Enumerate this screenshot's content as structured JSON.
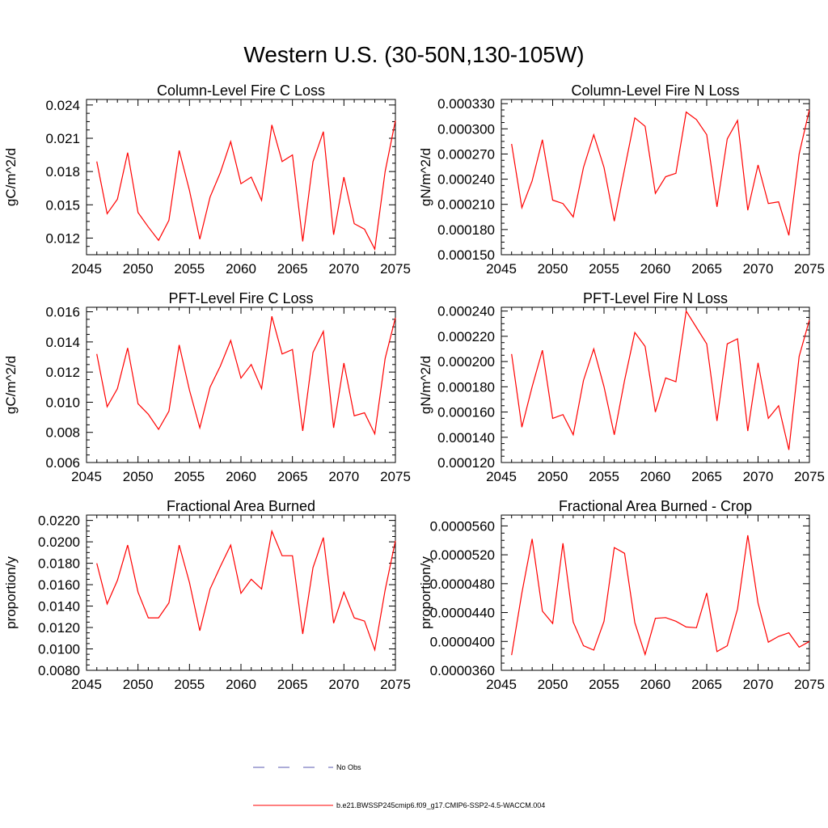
{
  "title": "Western U.S. (30-50N,130-105W)",
  "colors": {
    "series": "#ff0000",
    "obs": "#5a5ab0",
    "axis": "#000000"
  },
  "legend": [
    {
      "label": "No Obs",
      "style": "dashed",
      "color": "#5a5ab0"
    },
    {
      "label": "b.e21.BWSSP245cmip6.f09_g17.CMIP6-SSP2-4.5-WACCM.004",
      "style": "solid",
      "color": "#ff0000"
    }
  ],
  "chart_data": [
    {
      "type": "line",
      "title": "Column-Level Fire C Loss",
      "ylabel": "gC/m^2/d",
      "xlim": [
        2045,
        2075
      ],
      "ylim": [
        0.0105,
        0.0245
      ],
      "xticks": [
        2045,
        2050,
        2055,
        2060,
        2065,
        2070,
        2075
      ],
      "yticks": [
        0.012,
        0.015,
        0.018,
        0.021,
        0.024
      ],
      "ytick_labels": [
        "0.012",
        "0.015",
        "0.018",
        "0.021",
        "0.024"
      ],
      "x": [
        2046,
        2047,
        2048,
        2049,
        2050,
        2051,
        2052,
        2053,
        2054,
        2055,
        2056,
        2057,
        2058,
        2059,
        2060,
        2061,
        2062,
        2063,
        2064,
        2065,
        2066,
        2067,
        2068,
        2069,
        2070,
        2071,
        2072,
        2073,
        2074,
        2075
      ],
      "values": [
        0.0189,
        0.0142,
        0.0155,
        0.0197,
        0.0143,
        0.013,
        0.0118,
        0.0136,
        0.0199,
        0.0163,
        0.0119,
        0.0157,
        0.0179,
        0.0207,
        0.0169,
        0.0175,
        0.0154,
        0.0222,
        0.0189,
        0.0195,
        0.0117,
        0.0189,
        0.0216,
        0.0123,
        0.0175,
        0.0133,
        0.0128,
        0.011,
        0.018,
        0.0226
      ]
    },
    {
      "type": "line",
      "title": "Column-Level Fire N Loss",
      "ylabel": "gN/m^2/d",
      "xlim": [
        2045,
        2075
      ],
      "ylim": [
        0.00015,
        0.000335
      ],
      "xticks": [
        2045,
        2050,
        2055,
        2060,
        2065,
        2070,
        2075
      ],
      "yticks": [
        0.00015,
        0.00018,
        0.00021,
        0.00024,
        0.00027,
        0.0003,
        0.00033
      ],
      "ytick_labels": [
        "0.000150",
        "0.000180",
        "0.000210",
        "0.000240",
        "0.000270",
        "0.000300",
        "0.000330"
      ],
      "x": [
        2046,
        2047,
        2048,
        2049,
        2050,
        2051,
        2052,
        2053,
        2054,
        2055,
        2056,
        2057,
        2058,
        2059,
        2060,
        2061,
        2062,
        2063,
        2064,
        2065,
        2066,
        2067,
        2068,
        2069,
        2070,
        2071,
        2072,
        2073,
        2074,
        2075
      ],
      "values": [
        0.000282,
        0.000206,
        0.000238,
        0.000287,
        0.000215,
        0.000211,
        0.000195,
        0.000254,
        0.000293,
        0.000254,
        0.00019,
        0.000252,
        0.000313,
        0.000303,
        0.000223,
        0.000243,
        0.000247,
        0.00032,
        0.000311,
        0.000293,
        0.000207,
        0.000288,
        0.00031,
        0.000203,
        0.000257,
        0.000211,
        0.000213,
        0.000173,
        0.00027,
        0.000323
      ]
    },
    {
      "type": "line",
      "title": "PFT-Level Fire C Loss",
      "ylabel": "gC/m^2/d",
      "xlim": [
        2045,
        2075
      ],
      "ylim": [
        0.006,
        0.0163
      ],
      "xticks": [
        2045,
        2050,
        2055,
        2060,
        2065,
        2070,
        2075
      ],
      "yticks": [
        0.006,
        0.008,
        0.01,
        0.012,
        0.014,
        0.016
      ],
      "ytick_labels": [
        "0.006",
        "0.008",
        "0.010",
        "0.012",
        "0.014",
        "0.016"
      ],
      "x": [
        2046,
        2047,
        2048,
        2049,
        2050,
        2051,
        2052,
        2053,
        2054,
        2055,
        2056,
        2057,
        2058,
        2059,
        2060,
        2061,
        2062,
        2063,
        2064,
        2065,
        2066,
        2067,
        2068,
        2069,
        2070,
        2071,
        2072,
        2073,
        2074,
        2075
      ],
      "values": [
        0.0132,
        0.0097,
        0.0109,
        0.0136,
        0.0099,
        0.0092,
        0.0082,
        0.0094,
        0.0138,
        0.0108,
        0.0083,
        0.011,
        0.0124,
        0.0141,
        0.0116,
        0.0125,
        0.0109,
        0.0157,
        0.0132,
        0.0135,
        0.0081,
        0.0133,
        0.0147,
        0.0083,
        0.0126,
        0.0091,
        0.0093,
        0.0079,
        0.0129,
        0.0156
      ]
    },
    {
      "type": "line",
      "title": "PFT-Level Fire N Loss",
      "ylabel": "gN/m^2/d",
      "xlim": [
        2045,
        2075
      ],
      "ylim": [
        0.00012,
        0.000243
      ],
      "xticks": [
        2045,
        2050,
        2055,
        2060,
        2065,
        2070,
        2075
      ],
      "yticks": [
        0.00012,
        0.00014,
        0.00016,
        0.00018,
        0.0002,
        0.00022,
        0.00024
      ],
      "ytick_labels": [
        "0.000120",
        "0.000140",
        "0.000160",
        "0.000180",
        "0.000200",
        "0.000220",
        "0.000240"
      ],
      "x": [
        2046,
        2047,
        2048,
        2049,
        2050,
        2051,
        2052,
        2053,
        2054,
        2055,
        2056,
        2057,
        2058,
        2059,
        2060,
        2061,
        2062,
        2063,
        2064,
        2065,
        2066,
        2067,
        2068,
        2069,
        2070,
        2071,
        2072,
        2073,
        2074,
        2075
      ],
      "values": [
        0.000206,
        0.000148,
        0.00018,
        0.000209,
        0.000155,
        0.000158,
        0.000142,
        0.000185,
        0.00021,
        0.00018,
        0.000142,
        0.000185,
        0.000223,
        0.000212,
        0.00016,
        0.000187,
        0.000184,
        0.00024,
        0.000227,
        0.000214,
        0.000153,
        0.000214,
        0.000218,
        0.000145,
        0.000199,
        0.000155,
        0.000165,
        0.00013,
        0.000204,
        0.000233
      ]
    },
    {
      "type": "line",
      "title": "Fractional Area Burned",
      "ylabel": "proportion/y",
      "xlim": [
        2045,
        2075
      ],
      "ylim": [
        0.008,
        0.0225
      ],
      "xticks": [
        2045,
        2050,
        2055,
        2060,
        2065,
        2070,
        2075
      ],
      "yticks": [
        0.008,
        0.01,
        0.012,
        0.014,
        0.016,
        0.018,
        0.02,
        0.022
      ],
      "ytick_labels": [
        "0.0080",
        "0.0100",
        "0.0120",
        "0.0140",
        "0.0160",
        "0.0180",
        "0.0200",
        "0.0220"
      ],
      "x": [
        2046,
        2047,
        2048,
        2049,
        2050,
        2051,
        2052,
        2053,
        2054,
        2055,
        2056,
        2057,
        2058,
        2059,
        2060,
        2061,
        2062,
        2063,
        2064,
        2065,
        2066,
        2067,
        2068,
        2069,
        2070,
        2071,
        2072,
        2073,
        2074,
        2075
      ],
      "values": [
        0.018,
        0.0142,
        0.0164,
        0.0197,
        0.0153,
        0.0129,
        0.0129,
        0.0143,
        0.0197,
        0.0162,
        0.0117,
        0.0156,
        0.0177,
        0.0197,
        0.0152,
        0.0165,
        0.0156,
        0.021,
        0.0187,
        0.0187,
        0.0114,
        0.0176,
        0.0204,
        0.0124,
        0.0153,
        0.0129,
        0.0126,
        0.0099,
        0.0155,
        0.0201
      ]
    },
    {
      "type": "line",
      "title": "Fractional Area Burned - Crop",
      "ylabel": "proportion/y",
      "xlim": [
        2045,
        2075
      ],
      "ylim": [
        3.6e-05,
        5.75e-05
      ],
      "xticks": [
        2045,
        2050,
        2055,
        2060,
        2065,
        2070,
        2075
      ],
      "yticks": [
        3.6e-05,
        4e-05,
        4.4e-05,
        4.8e-05,
        5.2e-05,
        5.6e-05
      ],
      "ytick_labels": [
        "0.0000360",
        "0.0000400",
        "0.0000440",
        "0.0000480",
        "0.0000520",
        "0.0000560"
      ],
      "x": [
        2046,
        2047,
        2048,
        2049,
        2050,
        2051,
        2052,
        2053,
        2054,
        2055,
        2056,
        2057,
        2058,
        2059,
        2060,
        2061,
        2062,
        2063,
        2064,
        2065,
        2066,
        2067,
        2068,
        2069,
        2070,
        2071,
        2072,
        2073,
        2074,
        2075
      ],
      "values": [
        3.81e-05,
        4.67e-05,
        5.42e-05,
        4.42e-05,
        4.25e-05,
        5.36e-05,
        4.27e-05,
        3.94e-05,
        3.88e-05,
        4.28e-05,
        5.3e-05,
        5.22e-05,
        4.26e-05,
        3.82e-05,
        4.32e-05,
        4.33e-05,
        4.28e-05,
        4.2e-05,
        4.19e-05,
        4.67e-05,
        3.86e-05,
        3.94e-05,
        4.45e-05,
        5.47e-05,
        4.53e-05,
        3.99e-05,
        4.07e-05,
        4.12e-05,
        3.92e-05,
        4e-05
      ]
    }
  ]
}
